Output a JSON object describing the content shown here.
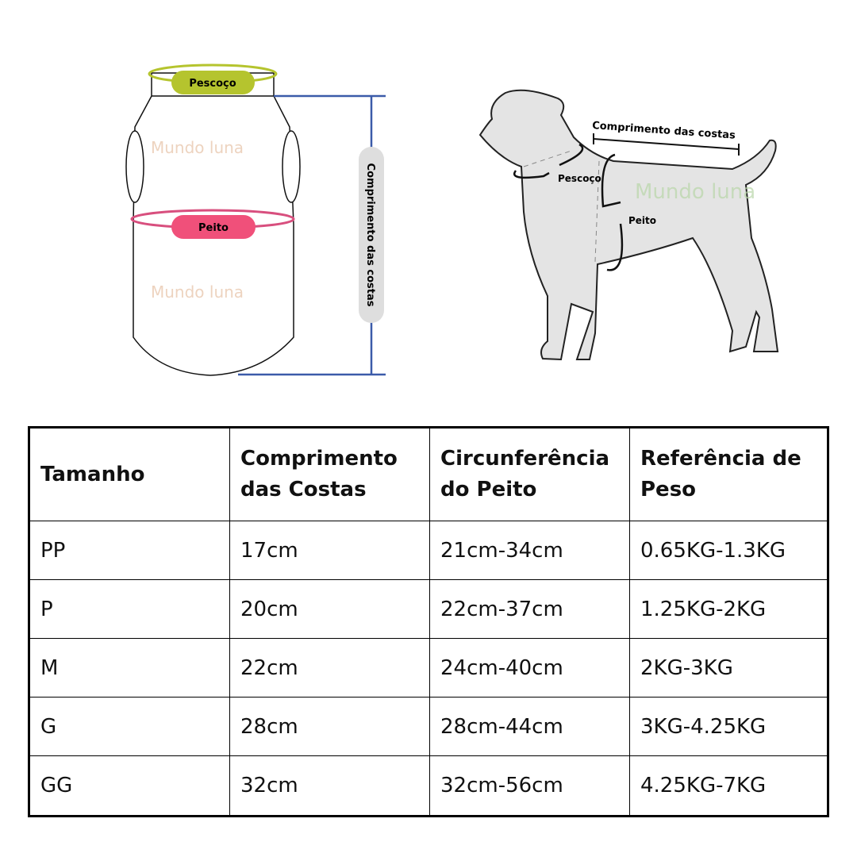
{
  "diagram": {
    "shirt": {
      "neck_label": "Pescoço",
      "chest_label": "Peito",
      "length_label": "Comprimento das costas",
      "watermark": "Mundo luna",
      "neck_color": "#b5c42e",
      "chest_color": "#f0507a",
      "length_color": "#3b5ba9"
    },
    "dog": {
      "length_label": "Comprimento das costas",
      "neck_label": "Pescoço",
      "chest_label": "Peito",
      "watermark": "Mundo luna"
    }
  },
  "table": {
    "headers": [
      "Tamanho",
      "Comprimento das Costas",
      "Circunferência do Peito",
      "Referência de Peso"
    ],
    "rows": [
      [
        "PP",
        "17cm",
        "21cm-34cm",
        "0.65KG-1.3KG"
      ],
      [
        "P",
        "20cm",
        "22cm-37cm",
        "1.25KG-2KG"
      ],
      [
        "M",
        "22cm",
        "24cm-40cm",
        "2KG-3KG"
      ],
      [
        "G",
        "28cm",
        "28cm-44cm",
        "3KG-4.25KG"
      ],
      [
        "GG",
        "32cm",
        "32cm-56cm",
        "4.25KG-7KG"
      ]
    ]
  }
}
